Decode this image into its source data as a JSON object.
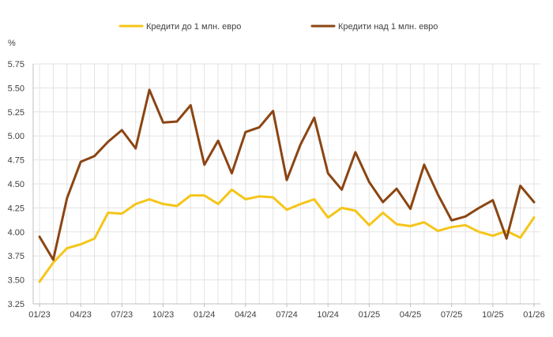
{
  "chart_data": {
    "type": "line",
    "ylabel": "%",
    "ylim": [
      3.25,
      5.75
    ],
    "yticks": [
      "3.25",
      "3.50",
      "3.75",
      "4.00",
      "4.25",
      "4.50",
      "4.75",
      "5.00",
      "5.25",
      "5.50",
      "5.75"
    ],
    "ytick_values": [
      3.25,
      3.5,
      3.75,
      4.0,
      4.25,
      4.5,
      4.75,
      5.0,
      5.25,
      5.5,
      5.75
    ],
    "xtick_labels": [
      "01/23",
      "04/23",
      "07/23",
      "10/23",
      "01/24",
      "04/24",
      "07/24",
      "10/24",
      "01/25",
      "04/25",
      "07/25",
      "10/25",
      "01/26"
    ],
    "xtick_every": 3,
    "grid": true,
    "legend_position": "top",
    "x": [
      "01/23",
      "02/23",
      "03/23",
      "04/23",
      "05/23",
      "06/23",
      "07/23",
      "08/23",
      "09/23",
      "10/23",
      "11/23",
      "12/23",
      "01/24",
      "02/24",
      "03/24",
      "04/24",
      "05/24",
      "06/24",
      "07/24",
      "08/24",
      "09/24",
      "10/24",
      "11/24",
      "12/24",
      "01/25",
      "02/25",
      "03/25",
      "04/25",
      "05/25",
      "06/25",
      "07/25",
      "08/25",
      "09/25",
      "10/25",
      "11/25",
      "12/25",
      "01/26"
    ],
    "series": [
      {
        "name": "Кредити до 1 млн. евро",
        "color": "#F5C518",
        "values": [
          3.48,
          3.68,
          3.83,
          3.87,
          3.93,
          4.2,
          4.19,
          4.29,
          4.34,
          4.29,
          4.27,
          4.38,
          4.38,
          4.29,
          4.44,
          4.34,
          4.37,
          4.36,
          4.23,
          4.29,
          4.34,
          4.15,
          4.25,
          4.22,
          4.07,
          4.2,
          4.08,
          4.06,
          4.1,
          4.01,
          4.05,
          4.07,
          4.0,
          3.96,
          4.01,
          3.94,
          4.15
        ]
      },
      {
        "name": "Кредити над 1 млн. евро",
        "color": "#8B4513",
        "values": [
          3.95,
          3.71,
          4.35,
          4.73,
          4.79,
          4.94,
          5.06,
          4.87,
          5.48,
          5.14,
          5.15,
          5.32,
          4.7,
          4.95,
          4.61,
          5.04,
          5.09,
          5.26,
          4.54,
          4.91,
          5.19,
          4.61,
          4.44,
          4.83,
          4.52,
          4.31,
          4.45,
          4.24,
          4.7,
          4.39,
          4.12,
          4.16,
          4.25,
          4.33,
          3.93,
          4.48,
          4.31
        ]
      }
    ]
  }
}
